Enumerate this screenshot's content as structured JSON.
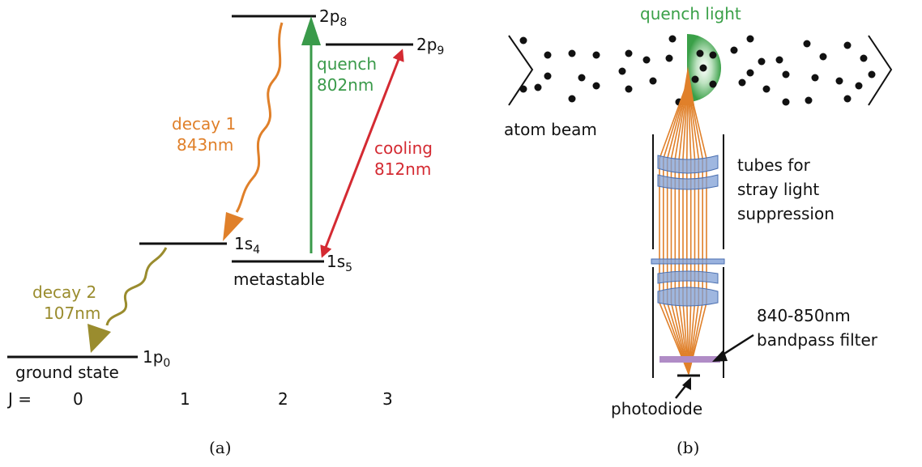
{
  "panel_a": {
    "caption": "(a)",
    "levels": {
      "p8": {
        "base": "2p",
        "sub": "8"
      },
      "p9": {
        "base": "2p",
        "sub": "9"
      },
      "s4": {
        "base": "1s",
        "sub": "4"
      },
      "s5": {
        "base": "1s",
        "sub": "5"
      },
      "p0": {
        "base": "1p",
        "sub": "0"
      }
    },
    "metastable": "metastable",
    "ground_state": "ground state",
    "transitions": {
      "decay1": {
        "line1": "decay 1",
        "line2": "843nm"
      },
      "decay2": {
        "line1": "decay 2",
        "line2": "107nm"
      },
      "quench": {
        "line1": "quench",
        "line2": "802nm"
      },
      "cooling": {
        "line1": "cooling",
        "line2": "812nm"
      }
    },
    "j_axis": {
      "label": "J =",
      "values": [
        "0",
        "1",
        "2",
        "3"
      ]
    },
    "colors": {
      "decay1": "#e0802a",
      "decay2": "#9a8c2e",
      "quench": "#3a9a4a",
      "cooling": "#d42a32"
    }
  },
  "panel_b": {
    "caption": "(b)",
    "quench_light": "quench light",
    "atom_beam": "atom beam",
    "tubes": [
      "tubes for",
      "stray light",
      "suppression"
    ],
    "filter": [
      "840-850nm",
      "bandpass filter"
    ],
    "photodiode": "photodiode",
    "colors": {
      "quench": "#3aa048",
      "rays": "#e0802a",
      "lens": "#7f9fd6",
      "filter": "#b08cc6"
    }
  }
}
